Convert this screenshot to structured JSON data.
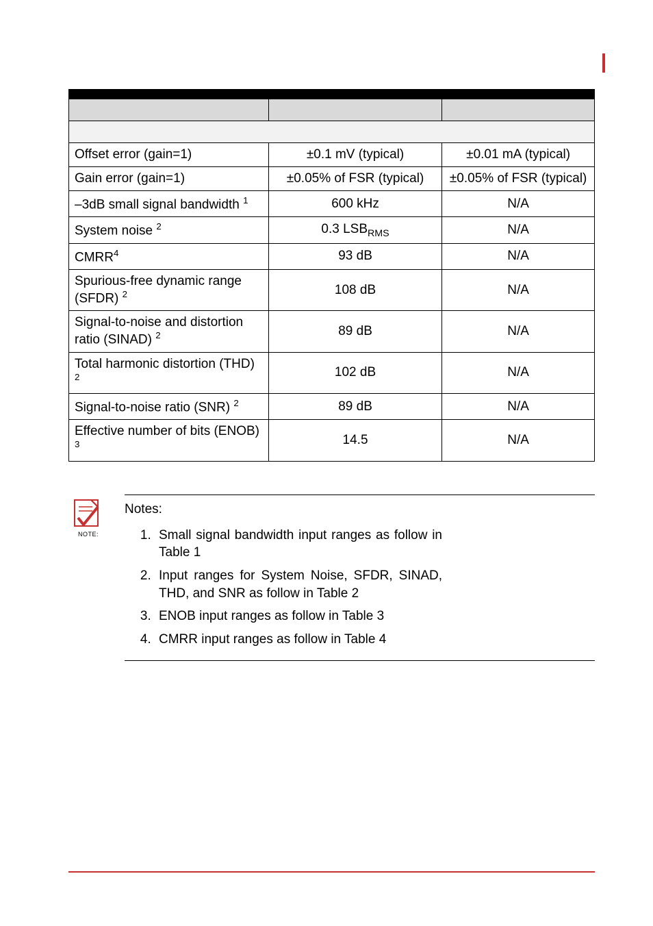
{
  "table": {
    "rows": [
      {
        "param_html": "Offset error (gain=1)",
        "c2": "±0.1 mV (typical)",
        "c3": "±0.01 mA (typical)"
      },
      {
        "param_html": "Gain error (gain=1)",
        "c2": "±0.05% of FSR (typical)",
        "c3": "±0.05% of FSR (typical)"
      },
      {
        "param_html": "–3dB small signal bandwidth <sup>1</sup>",
        "c2": "600 kHz",
        "c3": "N/A"
      },
      {
        "param_html": "System noise <sup>2</sup>",
        "c2_html": "0.3 LSB<sub>RMS</sub>",
        "c3": "N/A"
      },
      {
        "param_html": "CMRR<sup>4</sup>",
        "c2": "93 dB",
        "c3": "N/A"
      },
      {
        "param_html": "Spurious-free dynamic range (SFDR) <sup>2</sup>",
        "c2": "108 dB",
        "c3": "N/A"
      },
      {
        "param_html": "Signal-to-noise and distortion ratio (SINAD) <sup>2</sup>",
        "c2": "89 dB",
        "c3": "N/A"
      },
      {
        "param_html": "Total harmonic distortion (THD) <sup>2</sup>",
        "c2": "102 dB",
        "c3": "N/A"
      },
      {
        "param_html": "Signal-to-noise ratio (SNR) <sup>2</sup>",
        "c2": "89 dB",
        "c3": "N/A"
      },
      {
        "param_html": "Effective number of bits (ENOB) <sup>3</sup>",
        "c2": "14.5",
        "c3": "N/A"
      }
    ]
  },
  "notes": {
    "icon_label": "NOTE:",
    "title": "Notes:",
    "items": [
      "Small signal bandwidth input ranges as follow in Table 1",
      "Input ranges for System Noise, SFDR, SINAD, THD, and SNR as follow in Table 2",
      "ENOB input ranges as follow in Table 3",
      "CMRR input ranges as follow in Table 4"
    ]
  },
  "colors": {
    "accent": "#c53030",
    "header_grey": "#d9d9d9",
    "header_light": "#f2f2f2",
    "border": "#000000",
    "text": "#000000",
    "background": "#ffffff"
  }
}
